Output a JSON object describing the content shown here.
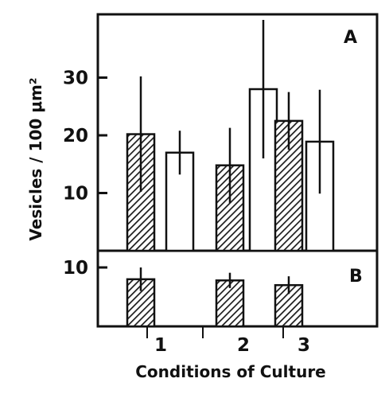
{
  "chart_data": [
    {
      "panel": "A",
      "type": "bar",
      "categories": [
        "1",
        "2",
        "3"
      ],
      "ylim": [
        0,
        40
      ],
      "yticks": [
        10,
        20,
        30
      ],
      "series": [
        {
          "style": "hatched",
          "values": [
            20.2,
            14.8,
            22.5
          ],
          "errors": [
            10.0,
            6.5,
            5.0
          ]
        },
        {
          "style": "open",
          "values": [
            17.0,
            28.0,
            18.9
          ],
          "errors": [
            3.8,
            12.0,
            9.0
          ]
        }
      ]
    },
    {
      "panel": "B",
      "type": "bar",
      "categories": [
        "1",
        "2",
        "3"
      ],
      "ylim": [
        0,
        13
      ],
      "yticks": [
        10
      ],
      "series": [
        {
          "style": "hatched",
          "values": [
            8.0,
            7.8,
            7.0
          ],
          "errors": [
            2.0,
            1.3,
            1.5
          ]
        }
      ]
    }
  ],
  "labels": {
    "panel_a": "A",
    "panel_b": "B",
    "ylabel": "Vesicles / 100 μm²",
    "xlabel": "Conditions of Culture"
  },
  "colors": {
    "hatched_fill": "#2a2a2a",
    "open_fill": "#ffffff",
    "ink": "#111111"
  }
}
